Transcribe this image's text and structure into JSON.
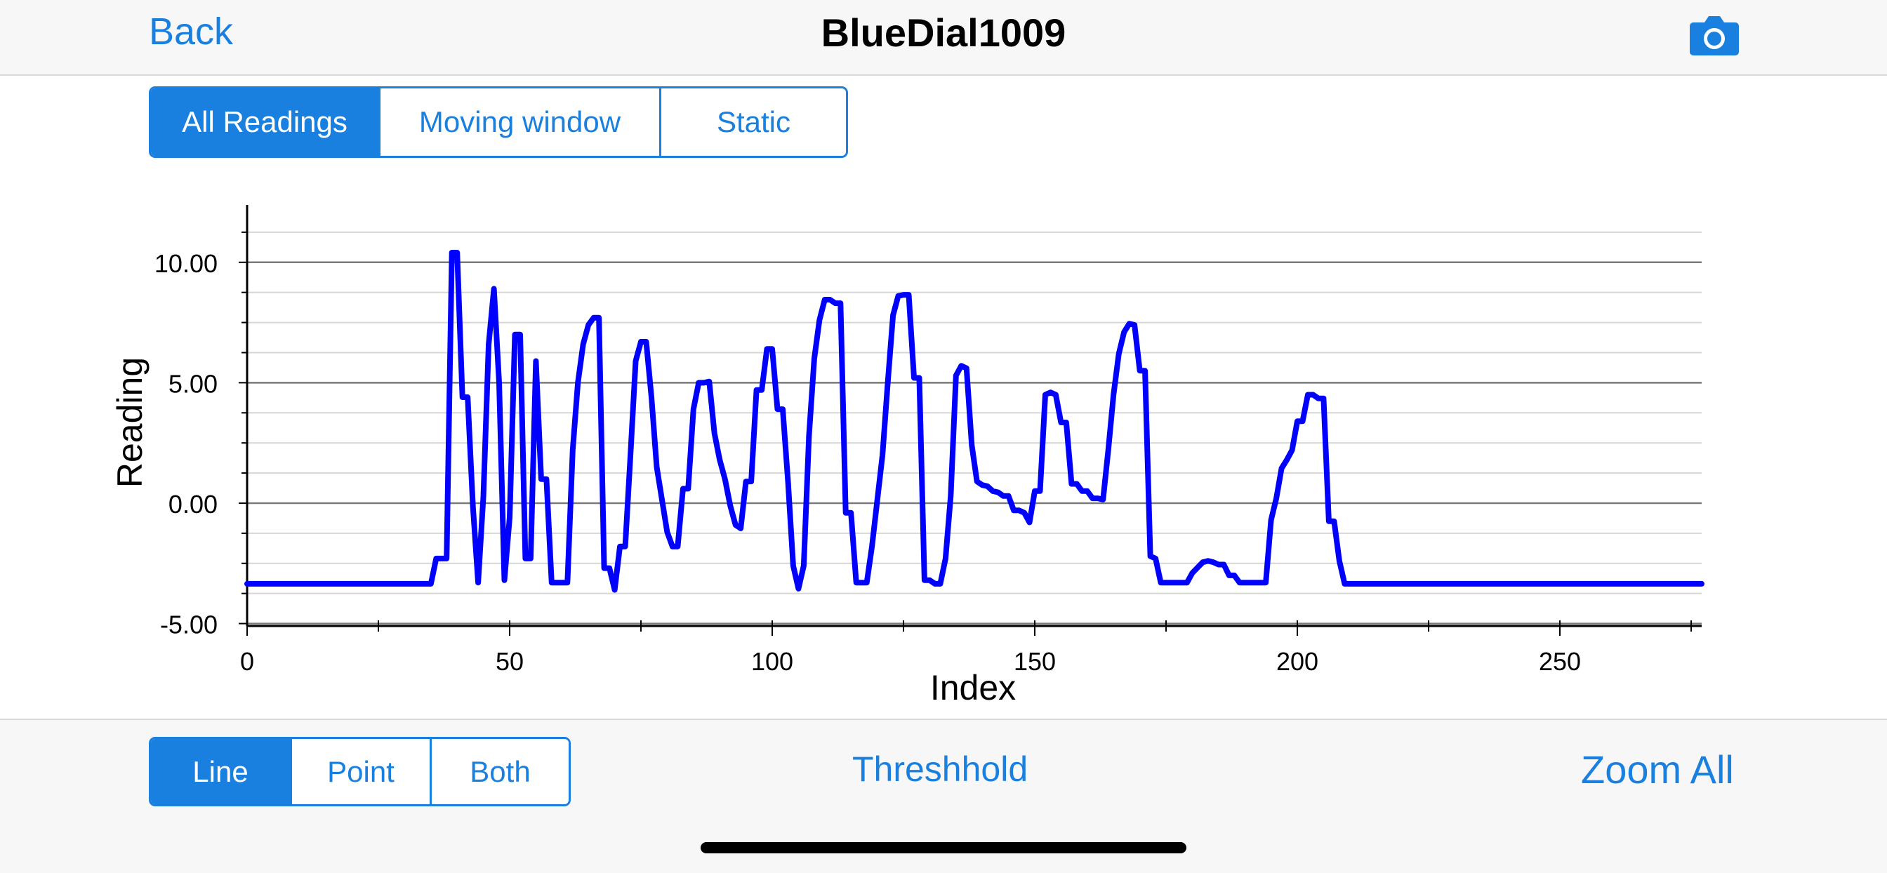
{
  "navbar": {
    "back_label": "Back",
    "title": "BlueDial1009",
    "camera_icon": "camera-icon"
  },
  "view_mode": {
    "options": [
      "All Readings",
      "Moving window",
      "Static"
    ],
    "selected": 0
  },
  "plot_style": {
    "options": [
      "Line",
      "Point",
      "Both"
    ],
    "selected": 0
  },
  "toolbar": {
    "threshold_label": "Threshhold",
    "zoom_label": "Zoom All"
  },
  "colors": {
    "accent": "#1a80e0",
    "series": "#0000ff",
    "grid": "#888888"
  },
  "chart_data": {
    "type": "line",
    "xlabel": "Index",
    "ylabel": "Reading",
    "xlim": [
      0,
      277
    ],
    "ylim": [
      -5.1,
      11.8
    ],
    "x_ticks": [
      "0",
      "50",
      "100",
      "150",
      "200",
      "250"
    ],
    "y_ticks": [
      "-5.00",
      "0.00",
      "5.00",
      "10.00"
    ],
    "grid": true,
    "series": [
      {
        "points": [
          [
            0,
            -3.35
          ],
          [
            35,
            -3.35
          ],
          [
            36,
            -2.3
          ],
          [
            38,
            -2.3
          ],
          [
            39,
            10.4
          ],
          [
            40,
            10.4
          ],
          [
            41,
            4.4
          ],
          [
            42,
            4.4
          ],
          [
            43,
            -0.1
          ],
          [
            44,
            -3.3
          ],
          [
            45,
            0.3
          ],
          [
            46,
            6.6
          ],
          [
            47,
            8.9
          ],
          [
            48,
            5.0
          ],
          [
            49,
            -3.2
          ],
          [
            50,
            -0.6
          ],
          [
            51,
            7.0
          ],
          [
            52,
            7.0
          ],
          [
            53,
            -2.3
          ],
          [
            54,
            -2.3
          ],
          [
            55,
            5.9
          ],
          [
            56,
            1.0
          ],
          [
            57,
            1.0
          ],
          [
            58,
            -3.3
          ],
          [
            61,
            -3.3
          ],
          [
            62,
            2.2
          ],
          [
            63,
            5.0
          ],
          [
            64,
            6.6
          ],
          [
            65,
            7.4
          ],
          [
            66,
            7.7
          ],
          [
            67,
            7.7
          ],
          [
            68,
            -2.7
          ],
          [
            69,
            -2.7
          ],
          [
            70,
            -3.6
          ],
          [
            71,
            -1.8
          ],
          [
            72,
            -1.8
          ],
          [
            73,
            2.0
          ],
          [
            74,
            5.9
          ],
          [
            75,
            6.7
          ],
          [
            76,
            6.7
          ],
          [
            77,
            4.4
          ],
          [
            78,
            1.5
          ],
          [
            80,
            -1.2
          ],
          [
            81,
            -1.8
          ],
          [
            82,
            -1.8
          ],
          [
            83,
            0.6
          ],
          [
            84,
            0.6
          ],
          [
            85,
            3.9
          ],
          [
            86,
            5.0
          ],
          [
            87,
            5.0
          ],
          [
            88,
            5.05
          ],
          [
            89,
            2.9
          ],
          [
            90,
            1.8
          ],
          [
            91,
            1.0
          ],
          [
            92,
            -0.1
          ],
          [
            93,
            -0.9
          ],
          [
            94,
            -1.05
          ],
          [
            95,
            0.9
          ],
          [
            96,
            0.9
          ],
          [
            97,
            4.7
          ],
          [
            98,
            4.7
          ],
          [
            99,
            6.4
          ],
          [
            100,
            6.4
          ],
          [
            101,
            3.9
          ],
          [
            102,
            3.9
          ],
          [
            103,
            0.9
          ],
          [
            104,
            -2.6
          ],
          [
            105,
            -3.55
          ],
          [
            106,
            -2.6
          ],
          [
            107,
            2.8
          ],
          [
            108,
            6.0
          ],
          [
            109,
            7.6
          ],
          [
            110,
            8.45
          ],
          [
            111,
            8.45
          ],
          [
            112,
            8.3
          ],
          [
            113,
            8.3
          ],
          [
            114,
            -0.4
          ],
          [
            115,
            -0.4
          ],
          [
            116,
            -3.3
          ],
          [
            118,
            -3.3
          ],
          [
            119,
            -1.8
          ],
          [
            121,
            2.0
          ],
          [
            122,
            5.0
          ],
          [
            123,
            7.8
          ],
          [
            124,
            8.6
          ],
          [
            125,
            8.65
          ],
          [
            126,
            8.65
          ],
          [
            127,
            5.2
          ],
          [
            128,
            5.2
          ],
          [
            129,
            -3.2
          ],
          [
            130,
            -3.2
          ],
          [
            131,
            -3.35
          ],
          [
            132,
            -3.35
          ],
          [
            133,
            -2.3
          ],
          [
            134,
            0.3
          ],
          [
            135,
            5.3
          ],
          [
            136,
            5.7
          ],
          [
            137,
            5.6
          ],
          [
            138,
            2.4
          ],
          [
            139,
            0.9
          ],
          [
            140,
            0.75
          ],
          [
            141,
            0.7
          ],
          [
            142,
            0.5
          ],
          [
            143,
            0.45
          ],
          [
            144,
            0.3
          ],
          [
            145,
            0.3
          ],
          [
            146,
            -0.3
          ],
          [
            147,
            -0.3
          ],
          [
            148,
            -0.4
          ],
          [
            149,
            -0.8
          ],
          [
            150,
            0.5
          ],
          [
            151,
            0.5
          ],
          [
            152,
            4.5
          ],
          [
            153,
            4.6
          ],
          [
            154,
            4.5
          ],
          [
            155,
            3.35
          ],
          [
            156,
            3.35
          ],
          [
            157,
            0.8
          ],
          [
            158,
            0.8
          ],
          [
            159,
            0.5
          ],
          [
            160,
            0.5
          ],
          [
            161,
            0.2
          ],
          [
            162,
            0.2
          ],
          [
            163,
            0.15
          ],
          [
            164,
            2.2
          ],
          [
            165,
            4.5
          ],
          [
            166,
            6.2
          ],
          [
            167,
            7.1
          ],
          [
            168,
            7.45
          ],
          [
            169,
            7.4
          ],
          [
            170,
            5.5
          ],
          [
            171,
            5.5
          ],
          [
            172,
            -2.2
          ],
          [
            173,
            -2.3
          ],
          [
            174,
            -3.3
          ],
          [
            179,
            -3.3
          ],
          [
            180,
            -2.9
          ],
          [
            182,
            -2.45
          ],
          [
            183,
            -2.4
          ],
          [
            184,
            -2.45
          ],
          [
            185,
            -2.55
          ],
          [
            186,
            -2.55
          ],
          [
            187,
            -3.0
          ],
          [
            188,
            -3.0
          ],
          [
            189,
            -3.3
          ],
          [
            194,
            -3.3
          ],
          [
            195,
            -0.7
          ],
          [
            196,
            0.2
          ],
          [
            197,
            1.45
          ],
          [
            198,
            1.8
          ],
          [
            199,
            2.2
          ],
          [
            200,
            3.4
          ],
          [
            201,
            3.4
          ],
          [
            202,
            4.5
          ],
          [
            203,
            4.5
          ],
          [
            204,
            4.35
          ],
          [
            205,
            4.35
          ],
          [
            206,
            -0.75
          ],
          [
            207,
            -0.75
          ],
          [
            208,
            -2.4
          ],
          [
            209,
            -3.35
          ],
          [
            277,
            -3.35
          ]
        ]
      }
    ]
  }
}
